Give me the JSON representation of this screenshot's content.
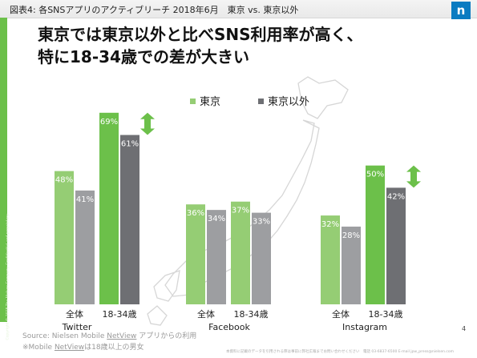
{
  "header": {
    "text": "図表4: 各SNSアプリのアクティブリーチ 2018年6月　東京 vs. 東京以外"
  },
  "logo": {
    "letter": "n"
  },
  "side": {
    "copyright": "Copyright © 2018 The Nielsen Company. Confidential and proprietary."
  },
  "title": {
    "line1": "東京では東京以外と比べSNS利用率が高く、",
    "line2": "特に18-34歳での差が大きい"
  },
  "colors": {
    "tokyo": "#95cd74",
    "tokyo_emph": "#6cc04a",
    "other": "#9d9ea1",
    "other_emph": "#6e6f73",
    "arrow": "#6cc04a",
    "map": "#d6d6d6"
  },
  "chart_data": {
    "type": "bar",
    "unit": "%",
    "ylim": [
      0,
      75
    ],
    "legend": {
      "position": "top",
      "entries": [
        "東京",
        "東京以外"
      ]
    },
    "series": [
      {
        "name": "東京",
        "values": [
          48,
          69,
          36,
          37,
          32,
          50
        ]
      },
      {
        "name": "東京以外",
        "values": [
          41,
          61,
          34,
          33,
          28,
          42
        ]
      }
    ],
    "panels": [
      {
        "title": "Twitter",
        "categories": [
          "全体",
          "18-34歳"
        ],
        "highlight_index": 1
      },
      {
        "title": "Facebook",
        "categories": [
          "全体",
          "18-34歳"
        ],
        "highlight_index": null
      },
      {
        "title": "Instagram",
        "categories": [
          "全体",
          "18-34歳"
        ],
        "highlight_index": 1
      }
    ]
  },
  "source": {
    "prefix": "Source: Nielsen Mobile ",
    "link": "NetView",
    "suffix": " アプリからの利用"
  },
  "note": {
    "prefix": "※Mobile ",
    "link": "NetView",
    "suffix": "は18歳以上の男女"
  },
  "page_number": "4",
  "footer": "本資料に記載のデータを引用される際は事前に弊社広報までお問い合わせください　電話 03-6837-6500  E-mail jpw_press@nielsen.com"
}
